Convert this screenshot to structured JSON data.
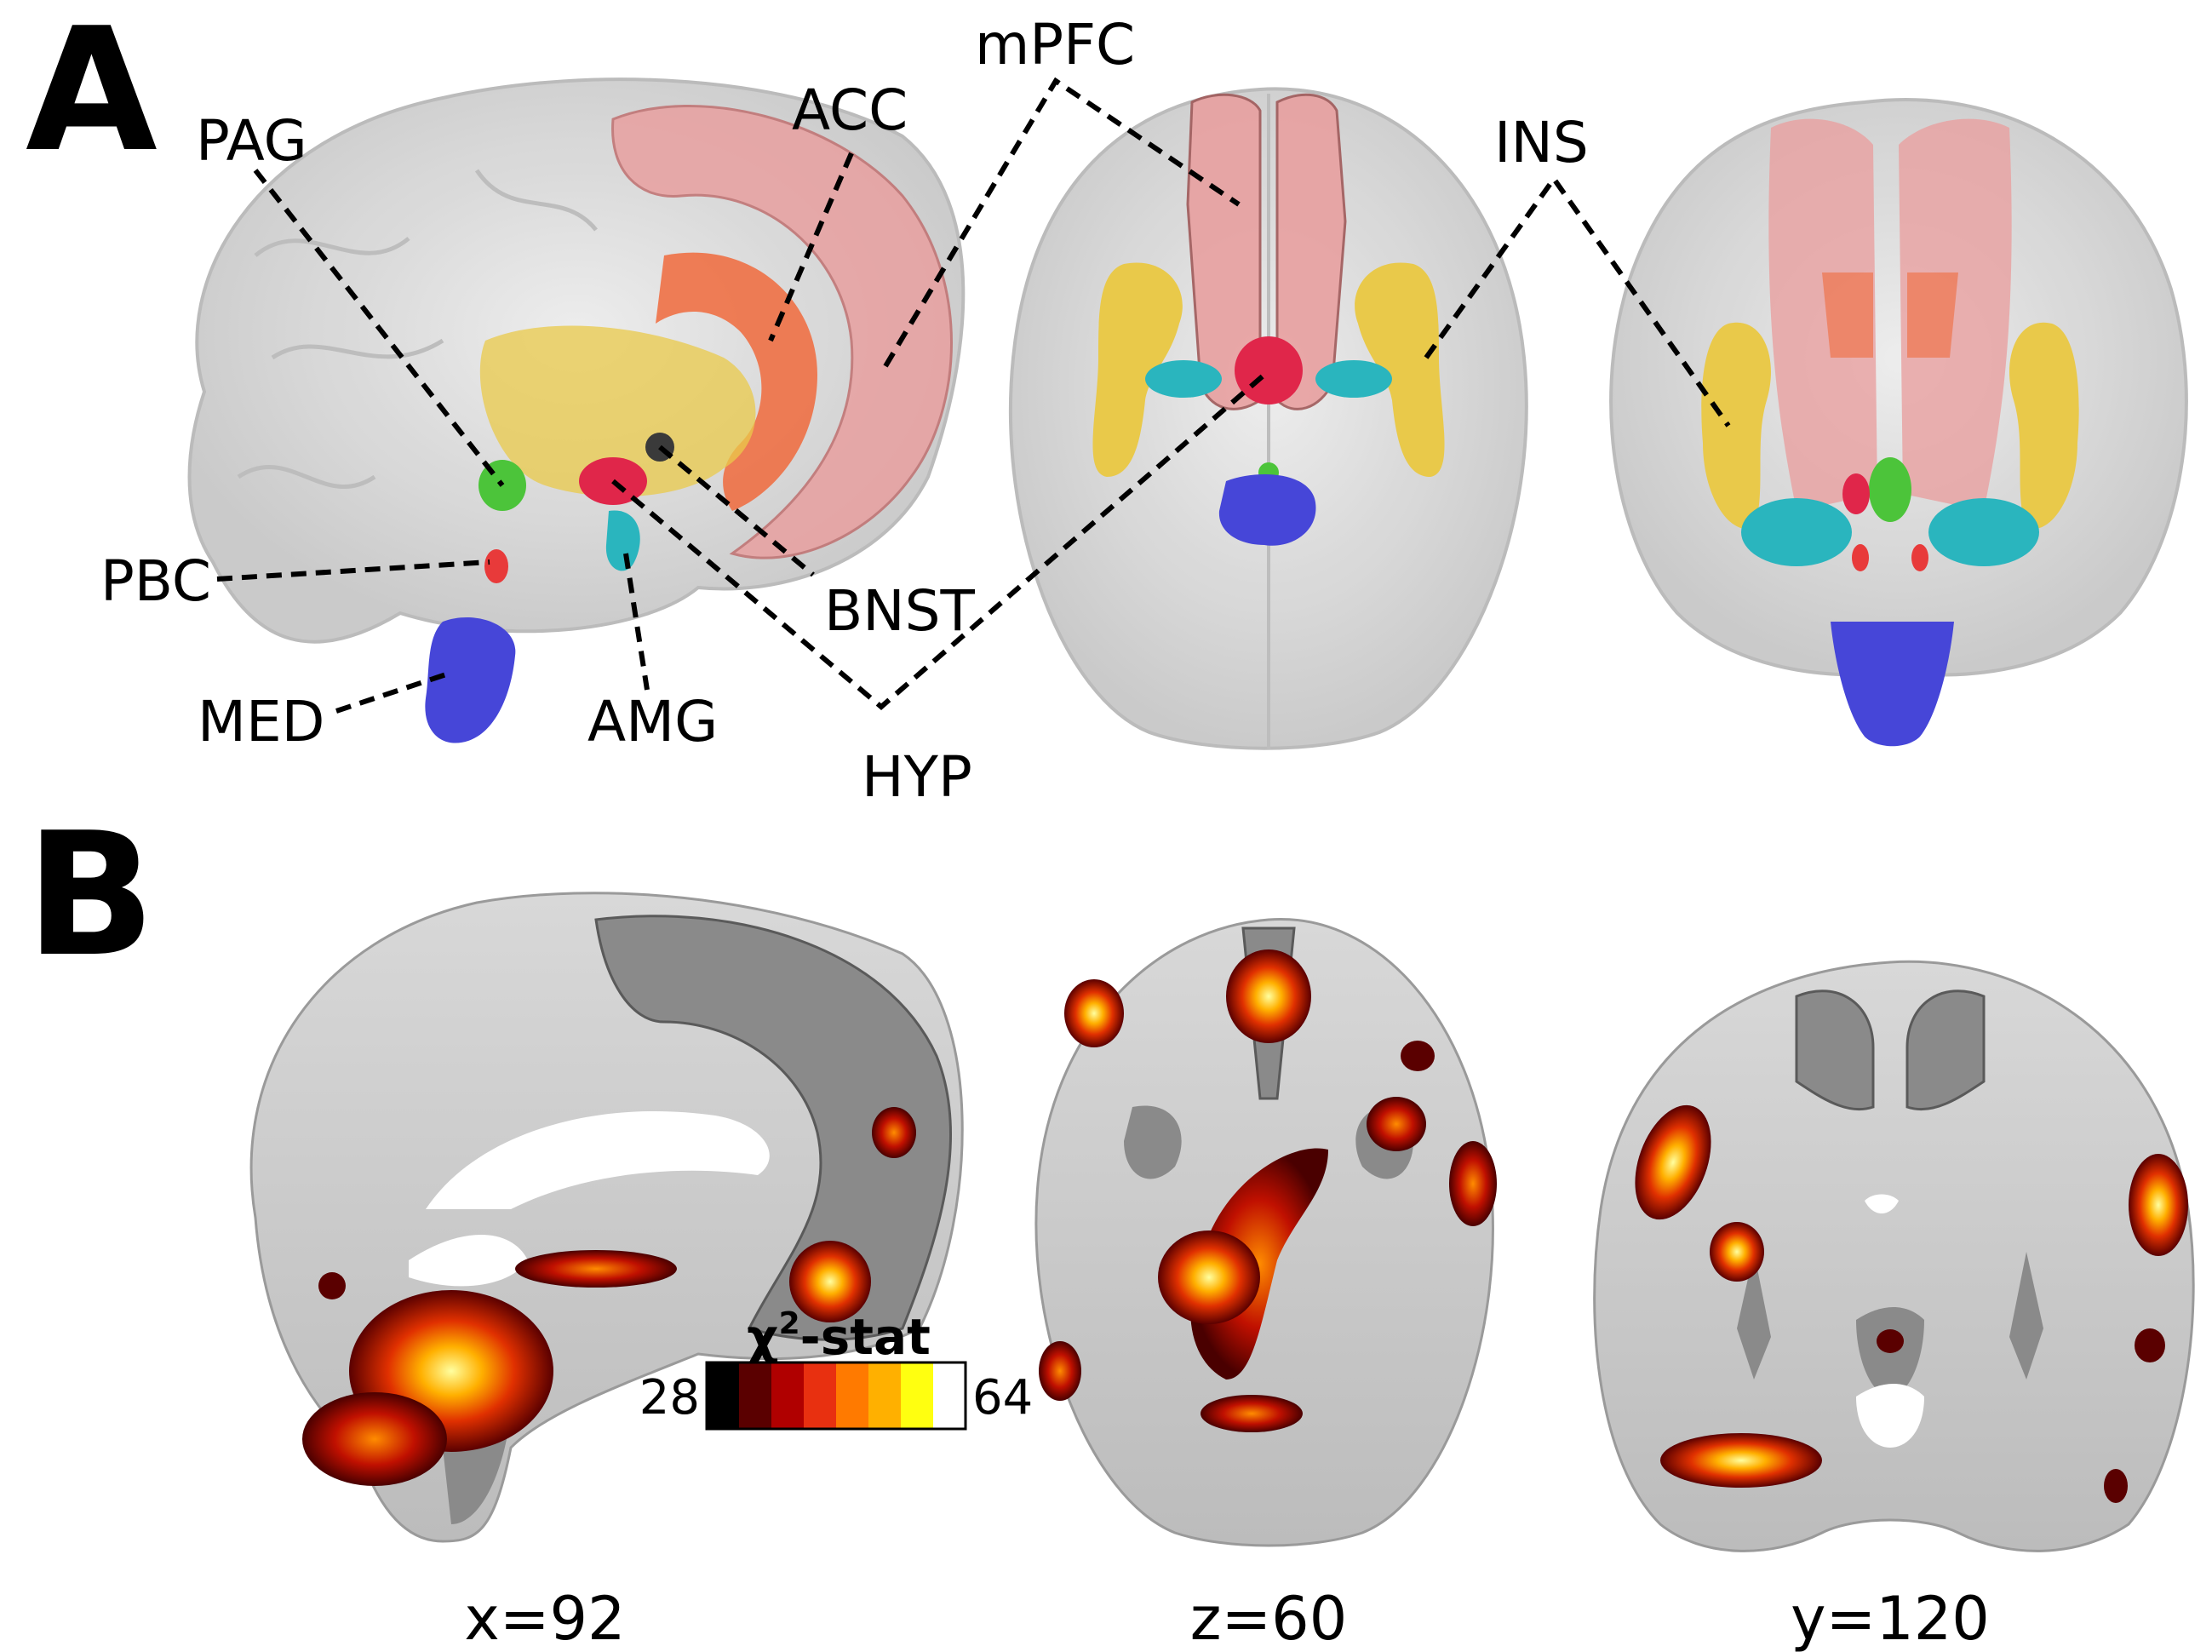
{
  "panels": {
    "a": "A",
    "b": "B"
  },
  "regions": {
    "pag": "PAG",
    "acc": "ACC",
    "mpfc": "mPFC",
    "ins": "INS",
    "pbc": "PBC",
    "bnst": "BNST",
    "med": "MED",
    "amg": "AMG",
    "hyp": "HYP"
  },
  "region_colors": {
    "mpfc": "#e8a0a0",
    "acc": "#f06a3c",
    "ins": "#e9c94a",
    "amg": "#2ab5be",
    "hyp": "#e0264a",
    "pag": "#4cc43a",
    "pbc": "#e83a3a",
    "bnst": "#3a3a3a",
    "med": "#4646d8"
  },
  "slices": {
    "sagittal": "x=92",
    "axial": "z=60",
    "coronal": "y=120"
  },
  "colorbar": {
    "title_symbol": "χ",
    "title_sup": "2",
    "title_rest": "-stat",
    "min": "28",
    "max": "64",
    "colors": [
      "#000000",
      "#5a0000",
      "#b00000",
      "#e83010",
      "#ff7a00",
      "#ffb000",
      "#ffff10",
      "#ffffff"
    ]
  }
}
